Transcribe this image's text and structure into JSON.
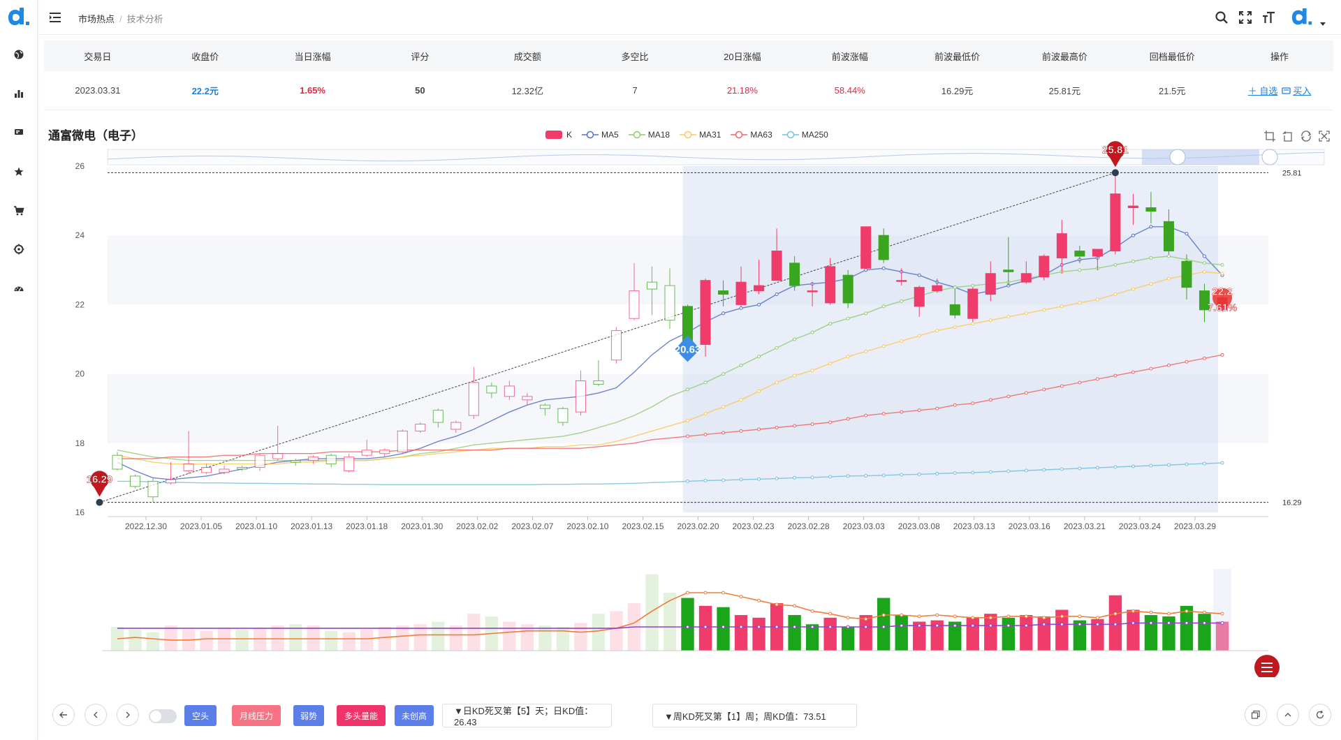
{
  "header": {
    "breadcrumb": [
      "市场热点",
      "技术分析"
    ]
  },
  "summary": {
    "headers": [
      "交易日",
      "收盘价",
      "当日涨幅",
      "评分",
      "成交额",
      "多空比",
      "20日涨幅",
      "前波涨幅",
      "前波最低价",
      "前波最高价",
      "回档最低价",
      "操作"
    ],
    "row": [
      "2023.03.31",
      "22.2元",
      "1.65%",
      "50",
      "12.32亿",
      "7",
      "21.18%",
      "58.44%",
      "16.29元",
      "25.81元",
      "21.5元"
    ],
    "actions": {
      "watch": "＋ 自选",
      "buy": "买入"
    }
  },
  "chart": {
    "stock_name": "通富微电（电子）",
    "legend": [
      "K",
      "MA5",
      "MA18",
      "MA31",
      "MA63",
      "MA250"
    ],
    "colors": {
      "up": "#f03c6b",
      "down": "#3aa61f",
      "ma5": "#5470c6",
      "ma18": "#91cc75",
      "ma31": "#fac858",
      "ma63": "#ee6666",
      "ma250": "#73c0de",
      "marker": "#c0181e"
    },
    "markers": {
      "high": "25.81",
      "low": "16.29",
      "start": "20.63",
      "current_price": "22.2",
      "current_pct": "7.61%"
    },
    "line_labels": {
      "high": "25.81",
      "low": "16.29"
    }
  },
  "chart_data": {
    "type": "candlestick",
    "title": "通富微电（电子）",
    "ylim": [
      16,
      26
    ],
    "y_ticks": [
      "16",
      "18",
      "20",
      "22",
      "24",
      "26"
    ],
    "x_ticks": [
      "2022.12.30",
      "2023.01.05",
      "2023.01.10",
      "2023.01.13",
      "2023.01.18",
      "2023.01.30",
      "2023.02.02",
      "2023.02.07",
      "2023.02.10",
      "2023.02.15",
      "2023.02.20",
      "2023.02.23",
      "2023.02.28",
      "2023.03.03",
      "2023.03.08",
      "2023.03.13",
      "2023.03.16",
      "2023.03.21",
      "2023.03.24",
      "2023.03.29"
    ],
    "candles": [
      [
        17.65,
        17.25,
        17.75,
        17.2
      ],
      [
        17.05,
        16.75,
        17.1,
        16.7
      ],
      [
        16.9,
        16.45,
        17.0,
        16.3
      ],
      [
        16.85,
        16.95,
        17.45,
        16.8
      ],
      [
        17.2,
        17.4,
        18.35,
        17.1
      ],
      [
        17.15,
        17.3,
        17.4,
        17.1
      ],
      [
        17.15,
        17.25,
        17.35,
        17.1
      ],
      [
        17.3,
        17.25,
        17.35,
        17.2
      ],
      [
        17.3,
        17.65,
        17.7,
        17.2
      ],
      [
        17.55,
        17.7,
        18.5,
        17.5
      ],
      [
        17.5,
        17.45,
        17.55,
        17.35
      ],
      [
        17.5,
        17.6,
        17.65,
        17.4
      ],
      [
        17.65,
        17.4,
        17.7,
        17.3
      ],
      [
        17.2,
        17.6,
        17.7,
        17.15
      ],
      [
        17.65,
        17.8,
        18.1,
        17.6
      ],
      [
        17.7,
        17.8,
        17.85,
        17.6
      ],
      [
        17.75,
        18.35,
        18.4,
        17.7
      ],
      [
        18.35,
        18.55,
        18.6,
        18.3
      ],
      [
        18.95,
        18.6,
        19.0,
        18.45
      ],
      [
        18.4,
        18.6,
        18.65,
        18.3
      ],
      [
        18.8,
        19.75,
        20.2,
        18.7
      ],
      [
        19.65,
        19.45,
        19.75,
        19.3
      ],
      [
        19.35,
        19.65,
        19.8,
        19.25
      ],
      [
        19.25,
        19.35,
        19.45,
        19.1
      ],
      [
        19.1,
        19.0,
        19.15,
        18.8
      ],
      [
        19.0,
        18.6,
        19.05,
        18.5
      ],
      [
        18.9,
        19.8,
        20.1,
        18.8
      ],
      [
        19.8,
        19.7,
        20.4,
        19.65
      ],
      [
        20.4,
        21.25,
        21.35,
        20.3
      ],
      [
        21.6,
        22.4,
        23.2,
        21.55
      ],
      [
        22.65,
        22.45,
        23.1,
        21.7
      ],
      [
        22.55,
        21.55,
        23.05,
        21.3
      ],
      [
        21.95,
        20.63,
        22.0,
        20.6
      ],
      [
        20.85,
        22.7,
        22.75,
        20.5
      ],
      [
        22.4,
        22.3,
        22.7,
        21.95
      ],
      [
        22.0,
        22.65,
        23.1,
        21.95
      ],
      [
        22.4,
        22.55,
        23.3,
        22.3
      ],
      [
        22.7,
        23.55,
        24.2,
        22.7
      ],
      [
        23.2,
        22.55,
        23.4,
        22.4
      ],
      [
        22.4,
        22.4,
        22.65,
        21.95
      ],
      [
        22.05,
        23.1,
        23.35,
        22.0
      ],
      [
        22.85,
        22.05,
        23.0,
        21.9
      ],
      [
        23.05,
        24.25,
        24.25,
        23.05
      ],
      [
        24.0,
        23.3,
        24.2,
        23.2
      ],
      [
        22.7,
        22.7,
        23.05,
        22.55
      ],
      [
        21.95,
        22.5,
        22.55,
        21.65
      ],
      [
        22.4,
        22.55,
        22.75,
        22.35
      ],
      [
        22.0,
        21.7,
        22.45,
        21.6
      ],
      [
        21.6,
        22.45,
        22.5,
        21.5
      ],
      [
        22.3,
        22.9,
        23.25,
        22.1
      ],
      [
        23.0,
        22.95,
        23.95,
        22.55
      ],
      [
        22.65,
        22.9,
        23.25,
        22.6
      ],
      [
        22.8,
        23.4,
        23.45,
        22.7
      ],
      [
        23.35,
        24.05,
        24.45,
        22.9
      ],
      [
        23.55,
        23.4,
        23.7,
        23.2
      ],
      [
        23.4,
        23.6,
        23.6,
        23.0
      ],
      [
        23.55,
        25.2,
        25.81,
        23.45
      ],
      [
        24.8,
        24.85,
        25.2,
        24.3
      ],
      [
        24.8,
        24.7,
        25.25,
        24.35
      ],
      [
        24.4,
        23.55,
        24.75,
        23.45
      ],
      [
        23.25,
        22.5,
        23.45,
        22.15
      ],
      [
        22.4,
        21.85,
        22.6,
        21.5
      ],
      [
        21.85,
        22.2,
        22.35,
        21.8
      ]
    ],
    "series": [
      {
        "name": "MA5",
        "values": [
          17.45,
          17.2,
          17.0,
          16.95,
          17.0,
          17.05,
          17.15,
          17.25,
          17.35,
          17.45,
          17.5,
          17.55,
          17.55,
          17.55,
          17.55,
          17.6,
          17.7,
          17.85,
          18.05,
          18.2,
          18.4,
          18.65,
          18.9,
          19.1,
          19.25,
          19.3,
          19.35,
          19.45,
          19.6,
          20.05,
          20.55,
          20.95,
          21.2,
          21.5,
          21.75,
          21.9,
          22.0,
          22.3,
          22.55,
          22.6,
          22.65,
          22.75,
          23.0,
          23.05,
          22.95,
          22.85,
          22.65,
          22.5,
          22.3,
          22.4,
          22.55,
          22.7,
          22.85,
          23.15,
          23.3,
          23.35,
          23.65,
          24.0,
          24.25,
          24.25,
          24.05,
          23.4,
          22.85
        ]
      },
      {
        "name": "MA18",
        "values": [
          17.8,
          17.7,
          17.6,
          17.55,
          17.5,
          17.5,
          17.5,
          17.5,
          17.5,
          17.5,
          17.5,
          17.5,
          17.5,
          17.5,
          17.5,
          17.55,
          17.6,
          17.7,
          17.75,
          17.85,
          17.95,
          18.0,
          18.05,
          18.1,
          18.15,
          18.2,
          18.3,
          18.45,
          18.6,
          18.8,
          19.05,
          19.35,
          19.55,
          19.75,
          20.0,
          20.25,
          20.5,
          20.75,
          21.0,
          21.2,
          21.45,
          21.6,
          21.75,
          21.95,
          22.1,
          22.25,
          22.4,
          22.5,
          22.55,
          22.6,
          22.65,
          22.75,
          22.85,
          22.95,
          23.0,
          23.05,
          23.15,
          23.25,
          23.35,
          23.4,
          23.3,
          23.2,
          23.15
        ]
      },
      {
        "name": "MA31",
        "values": [
          17.65,
          17.55,
          17.45,
          17.4,
          17.4,
          17.4,
          17.4,
          17.4,
          17.4,
          17.4,
          17.45,
          17.45,
          17.5,
          17.5,
          17.5,
          17.55,
          17.6,
          17.65,
          17.7,
          17.75,
          17.8,
          17.85,
          17.85,
          17.85,
          17.9,
          17.9,
          17.95,
          17.95,
          18.05,
          18.2,
          18.35,
          18.5,
          18.65,
          18.85,
          19.05,
          19.25,
          19.5,
          19.75,
          19.95,
          20.1,
          20.3,
          20.5,
          20.65,
          20.8,
          20.95,
          21.1,
          21.25,
          21.35,
          21.45,
          21.55,
          21.65,
          21.75,
          21.85,
          21.95,
          22.05,
          22.15,
          22.3,
          22.45,
          22.6,
          22.75,
          22.85,
          22.95,
          22.9
        ]
      },
      {
        "name": "MA63",
        "values": [
          17.55,
          17.55,
          17.55,
          17.6,
          17.6,
          17.6,
          17.65,
          17.65,
          17.7,
          17.7,
          17.7,
          17.7,
          17.75,
          17.75,
          17.75,
          17.75,
          17.8,
          17.8,
          17.8,
          17.8,
          17.8,
          17.8,
          17.85,
          17.85,
          17.85,
          17.85,
          17.85,
          17.9,
          17.95,
          18.0,
          18.1,
          18.15,
          18.2,
          18.25,
          18.3,
          18.35,
          18.4,
          18.45,
          18.5,
          18.55,
          18.6,
          18.7,
          18.8,
          18.85,
          18.9,
          18.95,
          19.0,
          19.1,
          19.15,
          19.25,
          19.35,
          19.45,
          19.55,
          19.65,
          19.75,
          19.85,
          19.95,
          20.05,
          20.15,
          20.25,
          20.35,
          20.45,
          20.55
        ]
      },
      {
        "name": "MA250",
        "values": [
          16.9,
          16.9,
          16.88,
          16.87,
          16.86,
          16.85,
          16.85,
          16.84,
          16.84,
          16.83,
          16.83,
          16.82,
          16.82,
          16.81,
          16.81,
          16.8,
          16.8,
          16.8,
          16.8,
          16.8,
          16.8,
          16.8,
          16.8,
          16.8,
          16.81,
          16.81,
          16.82,
          16.82,
          16.83,
          16.84,
          16.86,
          16.88,
          16.9,
          16.92,
          16.93,
          16.95,
          16.96,
          16.98,
          17.0,
          17.01,
          17.03,
          17.05,
          17.06,
          17.07,
          17.09,
          17.1,
          17.12,
          17.14,
          17.15,
          17.17,
          17.19,
          17.21,
          17.23,
          17.25,
          17.27,
          17.29,
          17.31,
          17.33,
          17.35,
          17.37,
          17.39,
          17.41,
          17.43
        ]
      }
    ],
    "volume": {
      "values": [
        18,
        16,
        14,
        19,
        16,
        15,
        17,
        16,
        17,
        19,
        20,
        19,
        15,
        14,
        16,
        18,
        19,
        20,
        22,
        19,
        28,
        26,
        22,
        20,
        19,
        18,
        21,
        28,
        30,
        36,
        58,
        44,
        40,
        34,
        33,
        27,
        25,
        36,
        27,
        20,
        25,
        18,
        27,
        40,
        27,
        22,
        23,
        22,
        25,
        28,
        25,
        27,
        26,
        31,
        23,
        24,
        42,
        31,
        27,
        26,
        34,
        28,
        22
      ],
      "up": [
        0,
        0,
        0,
        1,
        1,
        1,
        1,
        0,
        1,
        1,
        0,
        1,
        0,
        1,
        1,
        1,
        1,
        1,
        0,
        1,
        1,
        0,
        1,
        1,
        0,
        0,
        1,
        0,
        1,
        1,
        0,
        0,
        0,
        1,
        0,
        1,
        1,
        1,
        0,
        0,
        1,
        0,
        1,
        0,
        0,
        1,
        1,
        0,
        1,
        1,
        0,
        1,
        1,
        1,
        0,
        1,
        1,
        1,
        0,
        0,
        0,
        0,
        1
      ],
      "ma_short": [
        9,
        10,
        9,
        8,
        8,
        9,
        9,
        9,
        9,
        9,
        9,
        9,
        9,
        9,
        9,
        10,
        11,
        12,
        12,
        12,
        12,
        13,
        14,
        15,
        15,
        15,
        14,
        15,
        17,
        21,
        30,
        38,
        44,
        44,
        44,
        41,
        38,
        35,
        34,
        30,
        28,
        25,
        24,
        27,
        27,
        26,
        27,
        26,
        25,
        25,
        26,
        26,
        25,
        26,
        26,
        25,
        28,
        30,
        29,
        28,
        30,
        29,
        28
      ],
      "ma_long": [
        17,
        17,
        17,
        17,
        17,
        17,
        17,
        17,
        17,
        17,
        17,
        17,
        17,
        17,
        17,
        17,
        17,
        17,
        17,
        17,
        17,
        17,
        17,
        17,
        17,
        17,
        17,
        17,
        17,
        18,
        18,
        18,
        18,
        18,
        18,
        18,
        18,
        18,
        18,
        18,
        18,
        18,
        18,
        18,
        19,
        19,
        19,
        19,
        19,
        19,
        19,
        19,
        20,
        20,
        20,
        20,
        20,
        21,
        21,
        21,
        21,
        21,
        21
      ]
    }
  },
  "bottombar": {
    "tags": [
      "空头",
      "月线压力",
      "弱势",
      "多头量能",
      "未创高"
    ],
    "kd_daily": "▼日KD死叉第【5】天；日KD值：26.43",
    "kd_weekly": "▼周KD死叉第【1】周；周KD值：73.51"
  }
}
